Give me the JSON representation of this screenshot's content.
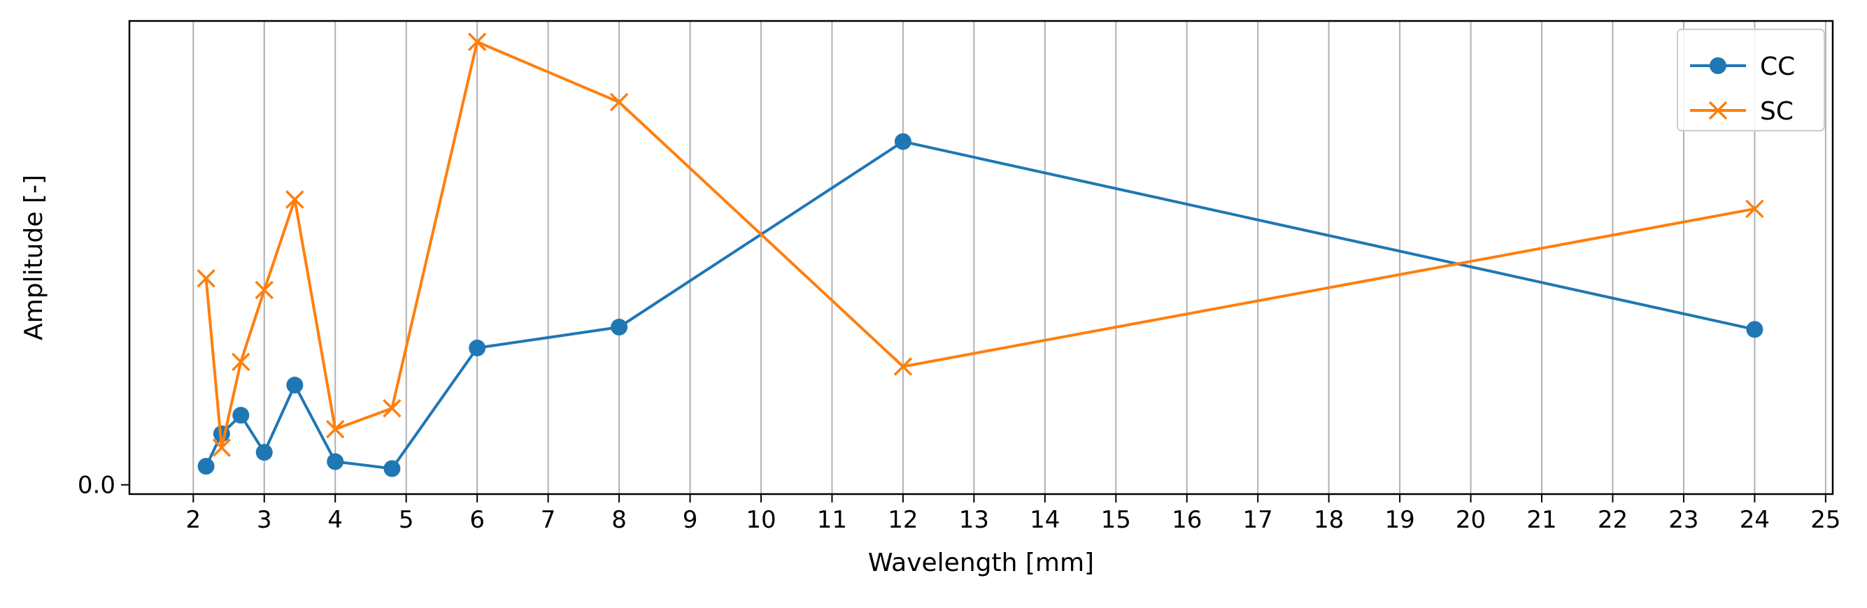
{
  "chart_data": {
    "type": "line",
    "title": "",
    "xlabel": "Wavelength [mm]",
    "ylabel": "Amplitude [-]",
    "xlim": [
      1.1,
      25.1
    ],
    "ylim": [
      -0.02,
      1.0
    ],
    "x_ticks": [
      2,
      3,
      4,
      5,
      6,
      7,
      8,
      9,
      10,
      11,
      12,
      13,
      14,
      15,
      16,
      17,
      18,
      19,
      20,
      21,
      22,
      23,
      24,
      25
    ],
    "y_ticks": [
      0.0
    ],
    "y_tick_labels": [
      "0.0"
    ],
    "grid": "vertical",
    "legend": "top-right",
    "series": [
      {
        "name": "CC",
        "color": "#1f77b4",
        "marker": "circle",
        "x": [
          2.18,
          2.4,
          2.67,
          3.0,
          3.43,
          4.0,
          4.8,
          6.0,
          8.0,
          12.0,
          24.0
        ],
        "y": [
          0.04,
          0.11,
          0.15,
          0.07,
          0.215,
          0.05,
          0.035,
          0.295,
          0.34,
          0.74,
          0.335
        ]
      },
      {
        "name": "SC",
        "color": "#ff7f0e",
        "marker": "x",
        "x": [
          2.18,
          2.4,
          2.67,
          3.0,
          3.43,
          4.0,
          4.8,
          6.0,
          8.0,
          12.0,
          24.0
        ],
        "y": [
          0.445,
          0.08,
          0.265,
          0.42,
          0.615,
          0.12,
          0.165,
          0.955,
          0.825,
          0.255,
          0.595
        ]
      }
    ]
  }
}
